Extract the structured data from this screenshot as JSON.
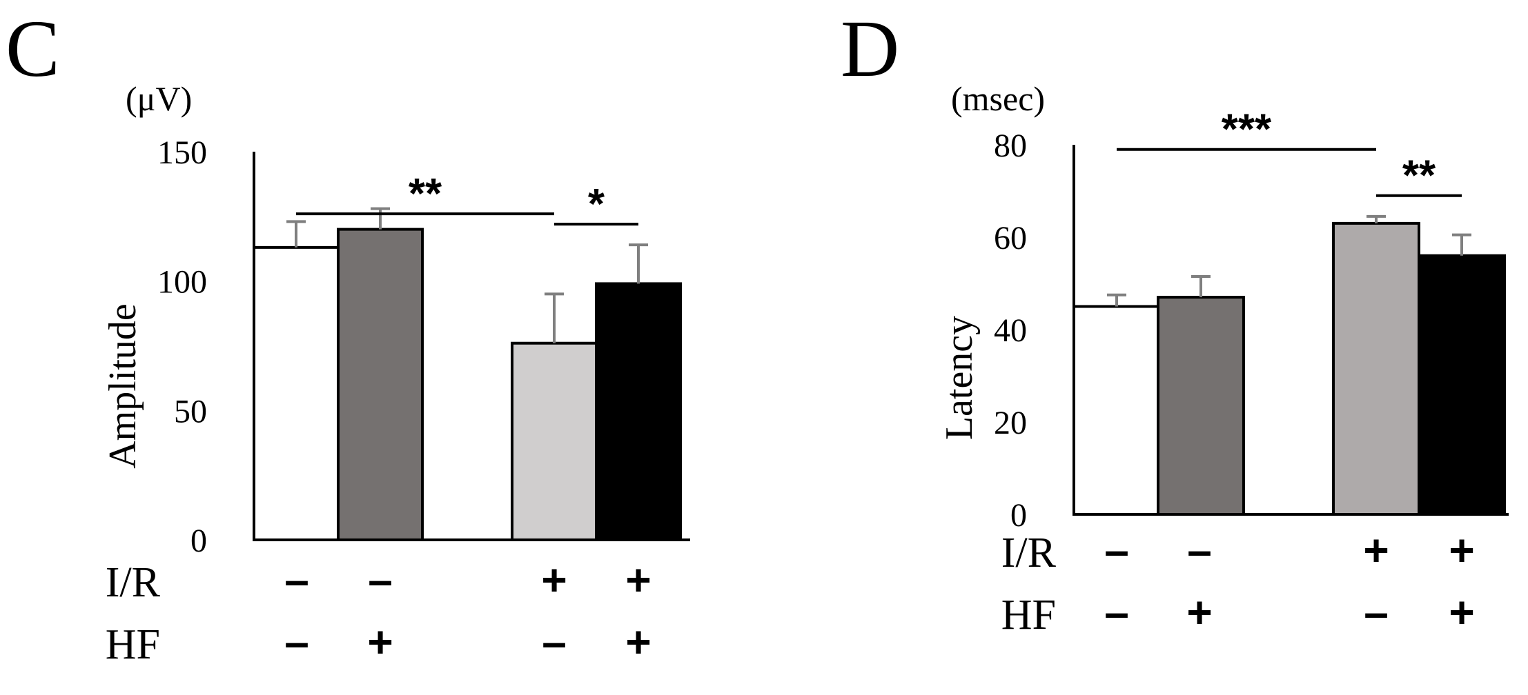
{
  "chart_data": [
    {
      "type": "bar",
      "panel_label": "C",
      "unit": "(μV)",
      "ylabel": "Amplitude",
      "ylim": [
        0,
        150
      ],
      "yticks": [
        "0",
        "50",
        "100",
        "150"
      ],
      "bars": [
        {
          "value": 113,
          "error": 10,
          "color": "#ffffff"
        },
        {
          "value": 120,
          "error": 8,
          "color": "#757170"
        },
        {
          "value": 76,
          "error": 19,
          "color": "#d0cece"
        },
        {
          "value": 99,
          "error": 15,
          "color": "#000000"
        }
      ],
      "rows": [
        {
          "label": "I/R",
          "signs": [
            "–",
            "–",
            "+",
            "+"
          ]
        },
        {
          "label": "HF",
          "signs": [
            "–",
            "+",
            "–",
            "+"
          ]
        }
      ],
      "significance": [
        {
          "from": 0,
          "to": 2,
          "level": 126,
          "label": "**"
        },
        {
          "from": 2,
          "to": 3,
          "level": 122,
          "label": "*"
        }
      ]
    },
    {
      "type": "bar",
      "panel_label": "D",
      "unit": "(msec)",
      "ylabel": "Latency",
      "ylim": [
        0,
        80
      ],
      "yticks": [
        "0",
        "20",
        "40",
        "60",
        "80"
      ],
      "bars": [
        {
          "value": 45,
          "error": 2.5,
          "color": "#ffffff"
        },
        {
          "value": 47,
          "error": 4.5,
          "color": "#757170"
        },
        {
          "value": 63,
          "error": 1.5,
          "color": "#aeaaaa"
        },
        {
          "value": 56,
          "error": 4.5,
          "color": "#000000"
        }
      ],
      "rows": [
        {
          "label": "I/R",
          "signs": [
            "–",
            "–",
            "+",
            "+"
          ]
        },
        {
          "label": "HF",
          "signs": [
            "–",
            "+",
            "–",
            "+"
          ]
        }
      ],
      "significance": [
        {
          "from": 0,
          "to": 2,
          "level": 79,
          "label": "***"
        },
        {
          "from": 2,
          "to": 3,
          "level": 69,
          "label": "**"
        }
      ]
    }
  ]
}
